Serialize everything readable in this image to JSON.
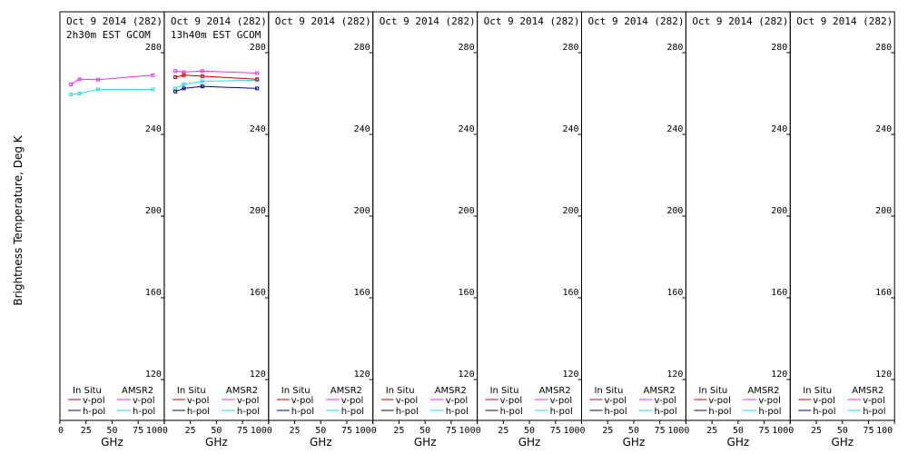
{
  "chart_data": {
    "type": "line",
    "ylabel": "Brightness Temperature, Deg K",
    "xlabel": "GHz",
    "ylim": [
      100,
      300
    ],
    "xlim": [
      0,
      100
    ],
    "yticks": [
      120,
      160,
      200,
      240,
      280
    ],
    "xticks": [
      0,
      25,
      50,
      75,
      100
    ],
    "grid": false,
    "legend": {
      "placement": "bottom",
      "insitu_header": "In Situ",
      "amsr2_header": "AMSR2",
      "vpol_label": "v-pol",
      "hpol_label": "h-pol"
    },
    "colors": {
      "insitu_v": "#cc0000",
      "insitu_h": "#00008b",
      "amsr2_v": "#ee33ee",
      "amsr2_h": "#22dddd"
    },
    "panels": [
      {
        "title": "Oct 9 2014 (282)",
        "subtitle": "2h30m EST GCOM",
        "series": [
          {
            "name": "AMSR2 v-pol",
            "key": "amsr2_v",
            "x": [
              10.65,
              18.7,
              36.5,
              89.0
            ],
            "y": [
              264.5,
              267.0,
              266.8,
              269.0
            ]
          },
          {
            "name": "AMSR2 h-pol",
            "key": "amsr2_h",
            "x": [
              10.65,
              18.7,
              36.5,
              89.0
            ],
            "y": [
              259.5,
              260.0,
              262.0,
              262.0
            ]
          }
        ]
      },
      {
        "title": "Oct 9 2014 (282)",
        "subtitle": "13h40m EST GCOM",
        "series": [
          {
            "name": "AMSR2 v-pol",
            "key": "amsr2_v",
            "x": [
              10.65,
              18.7,
              36.5,
              89.0
            ],
            "y": [
              271.0,
              270.5,
              271.0,
              270.0
            ]
          },
          {
            "name": "AMSR2 h-pol",
            "key": "amsr2_h",
            "x": [
              10.65,
              18.7,
              36.5,
              89.0
            ],
            "y": [
              262.5,
              264.5,
              266.0,
              266.5
            ]
          },
          {
            "name": "In Situ v-pol",
            "key": "insitu_v",
            "x": [
              10.65,
              18.7,
              36.5,
              89.0
            ],
            "y": [
              268.0,
              269.0,
              268.5,
              267.0
            ]
          },
          {
            "name": "In Situ h-pol",
            "key": "insitu_h",
            "x": [
              10.65,
              18.7,
              36.5,
              89.0
            ],
            "y": [
              261.0,
              262.5,
              263.5,
              262.5
            ]
          }
        ]
      },
      {
        "title": "Oct 9 2014 (282)",
        "subtitle": "",
        "series": []
      },
      {
        "title": "Oct 9 2014 (282)",
        "subtitle": "",
        "series": []
      },
      {
        "title": "Oct 9 2014 (282)",
        "subtitle": "",
        "series": []
      },
      {
        "title": "Oct 9 2014 (282)",
        "subtitle": "",
        "series": []
      },
      {
        "title": "Oct 9 2014 (282)",
        "subtitle": "",
        "series": []
      },
      {
        "title": "Oct 9 2014 (282)",
        "subtitle": "",
        "series": []
      }
    ]
  }
}
